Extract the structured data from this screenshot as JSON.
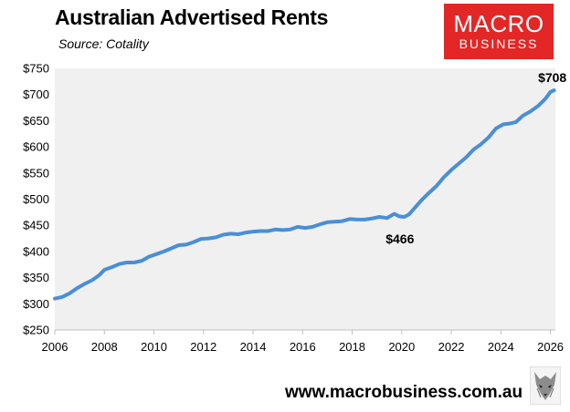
{
  "header": {
    "title": "Australian Advertised Rents",
    "subtitle": "Source: Cotality"
  },
  "logo": {
    "line1": "MACRO",
    "line2": "BUSINESS",
    "color": "#e32726"
  },
  "footer": {
    "url": "www.macrobusiness.com.au"
  },
  "colors": {
    "line": "#4a8fd6",
    "plot_bg": "#f0f0f0"
  },
  "chart_data": {
    "type": "line",
    "title": "Australian Advertised Rents",
    "subtitle": "Source: Cotality",
    "xlabel": "",
    "ylabel": "",
    "xlim": [
      2006,
      2026.2
    ],
    "ylim": [
      250,
      750
    ],
    "x_ticks": [
      2006,
      2008,
      2010,
      2012,
      2014,
      2016,
      2018,
      2020,
      2022,
      2024,
      2026
    ],
    "y_ticks": [
      250,
      300,
      350,
      400,
      450,
      500,
      550,
      600,
      650,
      700,
      750
    ],
    "y_tick_labels": [
      "$250",
      "$300",
      "$350",
      "$400",
      "$450",
      "$500",
      "$550",
      "$600",
      "$650",
      "$700",
      "$750"
    ],
    "grid": false,
    "series": [
      {
        "x": [
          2006.0,
          2006.3,
          2006.6,
          2006.9,
          2007.2,
          2007.5,
          2007.8,
          2008.0,
          2008.3,
          2008.6,
          2008.9,
          2009.2,
          2009.5,
          2009.8,
          2010.1,
          2010.4,
          2010.7,
          2011.0,
          2011.3,
          2011.6,
          2011.9,
          2012.2,
          2012.5,
          2012.8,
          2013.1,
          2013.4,
          2013.7,
          2014.0,
          2014.3,
          2014.6,
          2014.9,
          2015.2,
          2015.5,
          2015.8,
          2016.1,
          2016.4,
          2016.7,
          2017.0,
          2017.3,
          2017.6,
          2017.9,
          2018.2,
          2018.5,
          2018.8,
          2019.1,
          2019.4,
          2019.7,
          2019.9,
          2020.1,
          2020.3,
          2020.5,
          2020.8,
          2021.1,
          2021.4,
          2021.7,
          2022.0,
          2022.3,
          2022.6,
          2022.9,
          2023.2,
          2023.5,
          2023.8,
          2024.1,
          2024.3,
          2024.6,
          2024.9,
          2025.2,
          2025.5,
          2025.8,
          2026.0,
          2026.15
        ],
        "y": [
          310,
          313,
          320,
          330,
          338,
          345,
          355,
          365,
          370,
          376,
          379,
          379,
          382,
          390,
          395,
          400,
          406,
          412,
          413,
          418,
          424,
          425,
          427,
          432,
          434,
          433,
          436,
          438,
          439,
          439,
          442,
          441,
          442,
          447,
          445,
          447,
          452,
          456,
          457,
          458,
          462,
          461,
          461,
          463,
          466,
          464,
          472,
          467,
          466,
          471,
          482,
          498,
          512,
          525,
          542,
          556,
          568,
          580,
          595,
          605,
          618,
          635,
          643,
          644,
          647,
          660,
          668,
          678,
          692,
          705,
          708
        ]
      }
    ],
    "annotations": [
      {
        "text": "$466",
        "x": 2020.0,
        "y": 466
      },
      {
        "text": "$708",
        "x": 2026.15,
        "y": 708
      }
    ]
  }
}
